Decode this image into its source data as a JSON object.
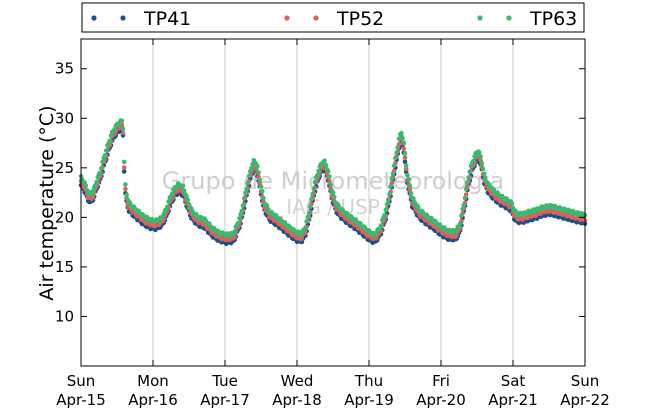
{
  "chart_data": {
    "type": "scatter",
    "ylabel": "Air temperature (°C)",
    "watermark": [
      "Grupo de Micrometeorologia",
      "IAG / USP"
    ],
    "ylim": [
      5,
      38
    ],
    "yticks": [
      10,
      15,
      20,
      25,
      30,
      35
    ],
    "xlim": [
      0,
      7
    ],
    "x_unit": "days since Sun Apr-15 00:00",
    "xticks": [
      {
        "x": 0,
        "day": "Sun",
        "date": "Apr-15"
      },
      {
        "x": 1,
        "day": "Mon",
        "date": "Apr-16"
      },
      {
        "x": 2,
        "day": "Tue",
        "date": "Apr-17"
      },
      {
        "x": 3,
        "day": "Wed",
        "date": "Apr-18"
      },
      {
        "x": 4,
        "day": "Thu",
        "date": "Apr-19"
      },
      {
        "x": 5,
        "day": "Fri",
        "date": "Apr-20"
      },
      {
        "x": 6,
        "day": "Sat",
        "date": "Apr-21"
      },
      {
        "x": 7,
        "day": "Sun",
        "date": "Apr-22"
      }
    ],
    "grid": "vertical",
    "legend": "top, horizontal",
    "series": [
      {
        "name": "TP41",
        "color": "#1f4e8c",
        "offset": -0.35
      },
      {
        "name": "TP52",
        "color": "#d9625a",
        "offset": 0.0
      },
      {
        "name": "TP63",
        "color": "#3cb870",
        "offset": 0.45
      }
    ],
    "profile": [
      [
        0.0,
        23.6
      ],
      [
        0.03,
        23.3
      ],
      [
        0.06,
        22.8
      ],
      [
        0.1,
        22.1
      ],
      [
        0.14,
        21.8
      ],
      [
        0.18,
        22.4
      ],
      [
        0.22,
        23.3
      ],
      [
        0.27,
        24.2
      ],
      [
        0.32,
        25.6
      ],
      [
        0.38,
        27.0
      ],
      [
        0.44,
        28.2
      ],
      [
        0.5,
        28.9
      ],
      [
        0.55,
        29.2
      ],
      [
        0.58,
        29.4
      ],
      [
        0.59,
        27.0
      ],
      [
        0.6,
        25.1
      ],
      [
        0.62,
        22.3
      ],
      [
        0.66,
        21.1
      ],
      [
        0.72,
        20.6
      ],
      [
        0.8,
        20.1
      ],
      [
        0.88,
        19.6
      ],
      [
        0.96,
        19.3
      ],
      [
        1.04,
        19.2
      ],
      [
        1.12,
        19.5
      ],
      [
        1.18,
        20.3
      ],
      [
        1.24,
        21.6
      ],
      [
        1.3,
        22.5
      ],
      [
        1.36,
        22.9
      ],
      [
        1.42,
        22.6
      ],
      [
        1.48,
        21.3
      ],
      [
        1.54,
        20.2
      ],
      [
        1.62,
        19.6
      ],
      [
        1.72,
        19.3
      ],
      [
        1.82,
        18.5
      ],
      [
        1.92,
        18.0
      ],
      [
        2.02,
        17.8
      ],
      [
        2.12,
        17.9
      ],
      [
        2.22,
        19.8
      ],
      [
        2.3,
        22.5
      ],
      [
        2.36,
        24.5
      ],
      [
        2.4,
        25.2
      ],
      [
        2.44,
        25.0
      ],
      [
        2.48,
        23.5
      ],
      [
        2.54,
        21.2
      ],
      [
        2.62,
        20.1
      ],
      [
        2.72,
        19.6
      ],
      [
        2.82,
        19.0
      ],
      [
        2.92,
        18.4
      ],
      [
        3.0,
        18.0
      ],
      [
        3.06,
        17.9
      ],
      [
        3.12,
        18.6
      ],
      [
        3.18,
        20.5
      ],
      [
        3.24,
        22.8
      ],
      [
        3.3,
        24.3
      ],
      [
        3.34,
        25.0
      ],
      [
        3.38,
        25.2
      ],
      [
        3.43,
        24.3
      ],
      [
        3.48,
        22.4
      ],
      [
        3.54,
        21.0
      ],
      [
        3.62,
        20.3
      ],
      [
        3.72,
        19.7
      ],
      [
        3.82,
        19.2
      ],
      [
        3.92,
        18.6
      ],
      [
        4.0,
        18.1
      ],
      [
        4.08,
        17.8
      ],
      [
        4.16,
        18.6
      ],
      [
        4.24,
        20.4
      ],
      [
        4.3,
        22.6
      ],
      [
        4.35,
        24.8
      ],
      [
        4.39,
        26.3
      ],
      [
        4.42,
        27.6
      ],
      [
        4.45,
        28.1
      ],
      [
        4.48,
        27.2
      ],
      [
        4.53,
        24.0
      ],
      [
        4.6,
        21.5
      ],
      [
        4.7,
        20.3
      ],
      [
        4.8,
        19.7
      ],
      [
        4.9,
        19.2
      ],
      [
        5.0,
        18.6
      ],
      [
        5.1,
        18.2
      ],
      [
        5.2,
        18.1
      ],
      [
        5.26,
        18.8
      ],
      [
        5.32,
        21.0
      ],
      [
        5.38,
        23.6
      ],
      [
        5.43,
        25.0
      ],
      [
        5.48,
        25.9
      ],
      [
        5.52,
        26.3
      ],
      [
        5.56,
        25.4
      ],
      [
        5.6,
        23.8
      ],
      [
        5.66,
        22.8
      ],
      [
        5.74,
        22.2
      ],
      [
        5.82,
        21.7
      ],
      [
        5.9,
        21.4
      ],
      [
        5.98,
        21.0
      ],
      [
        6.02,
        20.2
      ],
      [
        6.06,
        19.9
      ],
      [
        6.14,
        19.9
      ],
      [
        6.22,
        20.1
      ],
      [
        6.32,
        20.3
      ],
      [
        6.42,
        20.6
      ],
      [
        6.52,
        20.7
      ],
      [
        6.62,
        20.5
      ],
      [
        6.72,
        20.3
      ],
      [
        6.82,
        20.1
      ],
      [
        6.92,
        19.9
      ],
      [
        7.0,
        19.8
      ]
    ]
  }
}
